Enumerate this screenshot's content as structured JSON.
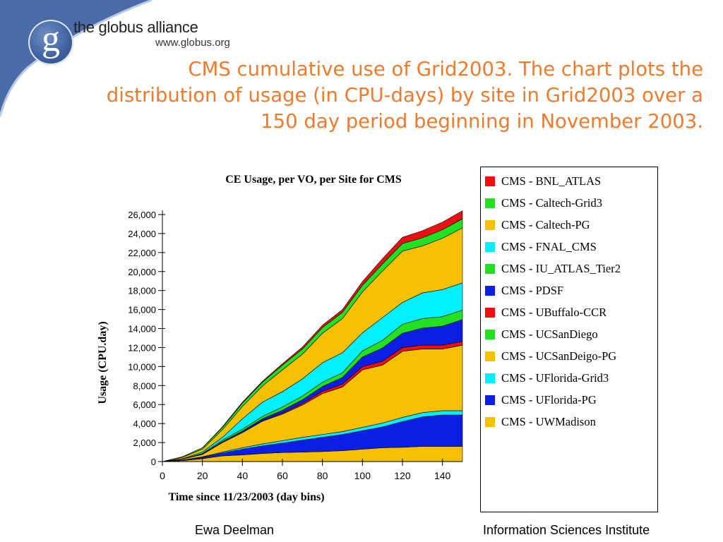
{
  "header": {
    "logo_letter": "g",
    "brand_name": "the globus alliance",
    "brand_url": "www.globus.org",
    "headline": "CMS cumulative use of Grid2003. The chart plots the distribution of usage (in CPU-days) by site in Grid2003 over a 150 day period beginning in November 2003.",
    "headline_color": "#f07a2c",
    "corner_color": "#4a6aa8"
  },
  "footer": {
    "left": "Ewa Deelman",
    "right": "Information Sciences Institute"
  },
  "chart_data": {
    "type": "area",
    "stacked": true,
    "title": "CE Usage, per VO, per Site for CMS",
    "xlabel": "Time since 11/23/2003 (day bins)",
    "ylabel": "Usage (CPU.day)",
    "xlim": [
      0,
      150
    ],
    "ylim": [
      0,
      26000
    ],
    "xticks": [
      0,
      20,
      40,
      60,
      80,
      100,
      120,
      140
    ],
    "yticks": [
      0,
      2000,
      4000,
      6000,
      8000,
      10000,
      12000,
      14000,
      16000,
      18000,
      20000,
      22000,
      24000,
      26000
    ],
    "ytick_labels": [
      "0",
      "2,000",
      "4,000",
      "6,000",
      "8,000",
      "10,000",
      "12,000",
      "14,000",
      "16,000",
      "18,000",
      "20,000",
      "22,000",
      "24,000",
      "26,000"
    ],
    "legend_position": "right",
    "x": [
      0,
      10,
      20,
      30,
      40,
      50,
      60,
      70,
      80,
      90,
      100,
      110,
      120,
      130,
      140,
      150
    ],
    "series": [
      {
        "name": "CMS - UWMadison",
        "color": "#f5c000",
        "values": [
          0,
          100,
          300,
          600,
          700,
          850,
          950,
          1000,
          1050,
          1150,
          1300,
          1450,
          1500,
          1600,
          1600,
          1600
        ]
      },
      {
        "name": "CMS - UFlorida-PG",
        "color": "#0a1ee6",
        "values": [
          0,
          50,
          150,
          300,
          600,
          800,
          1000,
          1250,
          1500,
          1700,
          1950,
          2200,
          2700,
          3100,
          3300,
          3300
        ]
      },
      {
        "name": "CMS - UFlorida-Grid3",
        "color": "#00f0ff",
        "values": [
          0,
          0,
          50,
          100,
          150,
          200,
          250,
          300,
          300,
          300,
          350,
          400,
          450,
          450,
          450,
          450
        ]
      },
      {
        "name": "CMS - UCSanDeigo-PG",
        "color": "#f5c000",
        "values": [
          0,
          100,
          250,
          1000,
          1600,
          2400,
          2800,
          3400,
          4300,
          4700,
          6050,
          6100,
          6950,
          6700,
          6500,
          6900
        ]
      },
      {
        "name": "CMS - UCSanDiego",
        "color": "#22e022",
        "values": [
          0,
          0,
          0,
          0,
          0,
          0,
          0,
          0,
          0,
          0,
          0,
          0,
          0,
          0,
          0,
          0
        ]
      },
      {
        "name": "CMS - UBuffalo-CCR",
        "color": "#ee1010",
        "values": [
          0,
          0,
          0,
          0,
          0,
          50,
          100,
          150,
          250,
          300,
          350,
          400,
          400,
          400,
          400,
          400
        ]
      },
      {
        "name": "CMS - PDSF",
        "color": "#0a1ee6",
        "values": [
          0,
          0,
          50,
          100,
          150,
          200,
          300,
          400,
          500,
          700,
          1000,
          1400,
          1500,
          1800,
          2000,
          2300
        ]
      },
      {
        "name": "CMS - IU_ATLAS_Tier2",
        "color": "#22e022",
        "values": [
          0,
          0,
          50,
          150,
          200,
          250,
          350,
          400,
          450,
          500,
          650,
          800,
          950,
          1000,
          1000,
          1000
        ]
      },
      {
        "name": "CMS - FNAL_CMS",
        "color": "#00f0ff",
        "values": [
          0,
          50,
          150,
          300,
          1100,
          1500,
          1600,
          1800,
          2050,
          2100,
          1900,
          2400,
          2300,
          2700,
          2850,
          2850
        ]
      },
      {
        "name": "CMS - Caltech-PG",
        "color": "#f5c000",
        "values": [
          0,
          150,
          300,
          800,
          1300,
          1700,
          2300,
          2600,
          3100,
          3600,
          4300,
          4900,
          5400,
          4950,
          5400,
          5800
        ]
      },
      {
        "name": "CMS - Caltech-Grid3",
        "color": "#22e022",
        "values": [
          0,
          50,
          150,
          250,
          350,
          400,
          500,
          550,
          600,
          650,
          700,
          750,
          800,
          850,
          900,
          950
        ]
      },
      {
        "name": "CMS - BNL_ATLAS",
        "color": "#ee1010",
        "values": [
          0,
          0,
          0,
          50,
          100,
          100,
          150,
          200,
          250,
          300,
          400,
          550,
          650,
          750,
          800,
          850
        ]
      }
    ]
  }
}
